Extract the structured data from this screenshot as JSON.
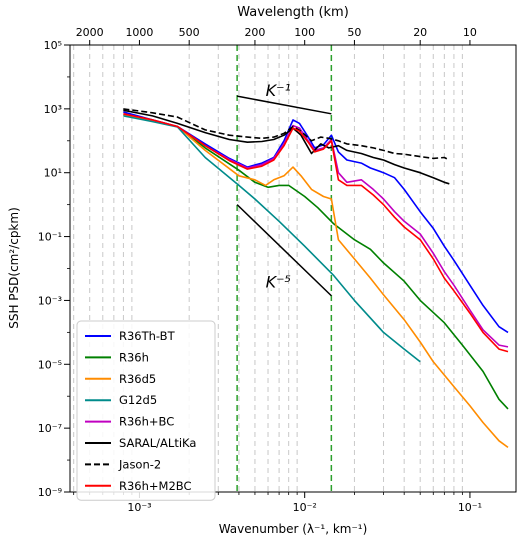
{
  "chart_data": {
    "type": "line",
    "xscale": "log",
    "yscale": "log",
    "xlim": [
      0.00038,
      0.19
    ],
    "ylim": [
      1e-09,
      100000
    ],
    "grid": "vertical dashed grey lines at minor x ticks",
    "xlabel": "Wavenumber (λ⁻¹, km⁻¹)",
    "ylabel": "SSH PSD(cm²/cpkm)",
    "top_axis_label": "Wavelength (km)",
    "x_tick_labels": [
      {
        "x": 0.001,
        "label": "10⁻³"
      },
      {
        "x": 0.01,
        "label": "10⁻²"
      },
      {
        "x": 0.1,
        "label": "10⁻¹"
      }
    ],
    "y_tick_labels": [
      {
        "y": 1e-09,
        "label": "10⁻⁹"
      },
      {
        "y": 1e-07,
        "label": "10⁻⁷"
      },
      {
        "y": 1e-05,
        "label": "10⁻⁵"
      },
      {
        "y": 0.001,
        "label": "10⁻³"
      },
      {
        "y": 0.1,
        "label": "10⁻¹"
      },
      {
        "y": 10,
        "label": "10¹"
      },
      {
        "y": 1000,
        "label": "10³"
      },
      {
        "y": 100000,
        "label": "10⁵"
      }
    ],
    "top_tick_labels": [
      {
        "km": 2000,
        "label": "2000"
      },
      {
        "km": 1000,
        "label": "1000"
      },
      {
        "km": 500,
        "label": "500"
      },
      {
        "km": 200,
        "label": "200"
      },
      {
        "km": 100,
        "label": "100"
      },
      {
        "km": 50,
        "label": "50"
      },
      {
        "km": 20,
        "label": "20"
      },
      {
        "km": 10,
        "label": "10"
      }
    ],
    "reference_lines": [
      {
        "label": "K⁻¹",
        "label_at": [
          0.0058,
          2500
        ],
        "points": [
          [
            0.0039,
            2500
          ],
          [
            0.0145,
            700
          ]
        ]
      },
      {
        "label": "K⁻⁵",
        "label_at": [
          0.0058,
          0.0025
        ],
        "points": [
          [
            0.0039,
            1
          ],
          [
            0.0145,
            0.0014
          ]
        ]
      }
    ],
    "vertical_markers": [
      {
        "x": 0.0039,
        "style": "dashed",
        "color": "#2ca02c"
      },
      {
        "x": 0.0145,
        "style": "dashed",
        "color": "#2ca02c"
      }
    ],
    "legend_position": "lower-left",
    "series": [
      {
        "name": "R36Th-BT",
        "color": "#0000ff",
        "style": "solid",
        "points": [
          [
            0.0008,
            800
          ],
          [
            0.0012,
            450
          ],
          [
            0.0017,
            280
          ],
          [
            0.0025,
            80
          ],
          [
            0.0035,
            28
          ],
          [
            0.0045,
            15
          ],
          [
            0.0055,
            20
          ],
          [
            0.0065,
            30
          ],
          [
            0.0075,
            100
          ],
          [
            0.0085,
            450
          ],
          [
            0.0093,
            350
          ],
          [
            0.0105,
            130
          ],
          [
            0.0115,
            60
          ],
          [
            0.013,
            75
          ],
          [
            0.0145,
            150
          ],
          [
            0.016,
            45
          ],
          [
            0.018,
            25
          ],
          [
            0.022,
            20
          ],
          [
            0.025,
            14
          ],
          [
            0.03,
            10
          ],
          [
            0.035,
            7
          ],
          [
            0.04,
            3
          ],
          [
            0.05,
            0.6
          ],
          [
            0.06,
            0.18
          ],
          [
            0.07,
            0.05
          ],
          [
            0.08,
            0.018
          ],
          [
            0.1,
            0.003
          ],
          [
            0.12,
            0.0007
          ],
          [
            0.15,
            0.00015
          ],
          [
            0.17,
            0.0001
          ]
        ]
      },
      {
        "name": "R36h",
        "color": "#008000",
        "style": "solid",
        "points": [
          [
            0.0008,
            650
          ],
          [
            0.0012,
            420
          ],
          [
            0.0017,
            280
          ],
          [
            0.0025,
            60
          ],
          [
            0.004,
            12
          ],
          [
            0.005,
            5
          ],
          [
            0.006,
            3.5
          ],
          [
            0.007,
            4
          ],
          [
            0.008,
            4
          ],
          [
            0.01,
            1.8
          ],
          [
            0.012,
            0.8
          ],
          [
            0.015,
            0.25
          ],
          [
            0.02,
            0.08
          ],
          [
            0.025,
            0.04
          ],
          [
            0.03,
            0.015
          ],
          [
            0.04,
            0.004
          ],
          [
            0.05,
            0.001
          ],
          [
            0.07,
            0.0002
          ],
          [
            0.09,
            4e-05
          ],
          [
            0.12,
            6e-06
          ],
          [
            0.15,
            8e-07
          ],
          [
            0.17,
            4e-07
          ]
        ]
      },
      {
        "name": "R36d5",
        "color": "#ff8c00",
        "style": "solid",
        "points": [
          [
            0.0008,
            650
          ],
          [
            0.0012,
            420
          ],
          [
            0.0017,
            280
          ],
          [
            0.0025,
            50
          ],
          [
            0.004,
            8
          ],
          [
            0.005,
            6
          ],
          [
            0.0058,
            4
          ],
          [
            0.0065,
            6
          ],
          [
            0.0075,
            8
          ],
          [
            0.0085,
            15
          ],
          [
            0.0095,
            8
          ],
          [
            0.011,
            3
          ],
          [
            0.013,
            1.8
          ],
          [
            0.0145,
            1.5
          ],
          [
            0.016,
            0.08
          ],
          [
            0.02,
            0.02
          ],
          [
            0.025,
            0.005
          ],
          [
            0.03,
            0.0015
          ],
          [
            0.04,
            0.00025
          ],
          [
            0.05,
            5e-05
          ],
          [
            0.06,
            1.2e-05
          ],
          [
            0.08,
            2e-06
          ],
          [
            0.1,
            5e-07
          ],
          [
            0.12,
            1.5e-07
          ],
          [
            0.15,
            4e-08
          ],
          [
            0.17,
            2.5e-08
          ]
        ]
      },
      {
        "name": "G12d5",
        "color": "#008b8b",
        "style": "solid",
        "points": [
          [
            0.0008,
            600
          ],
          [
            0.0012,
            400
          ],
          [
            0.0017,
            270
          ],
          [
            0.0025,
            30
          ],
          [
            0.004,
            4
          ],
          [
            0.005,
            1.5
          ],
          [
            0.007,
            0.3
          ],
          [
            0.01,
            0.05
          ],
          [
            0.015,
            0.006
          ],
          [
            0.02,
            0.001
          ],
          [
            0.03,
            0.0001
          ],
          [
            0.04,
            3e-05
          ],
          [
            0.05,
            1.2e-05
          ]
        ]
      },
      {
        "name": "R36h+BC",
        "color": "#c000c0",
        "style": "solid",
        "points": [
          [
            0.0008,
            700
          ],
          [
            0.0012,
            450
          ],
          [
            0.0017,
            280
          ],
          [
            0.0025,
            70
          ],
          [
            0.0035,
            26
          ],
          [
            0.0045,
            14
          ],
          [
            0.0055,
            18
          ],
          [
            0.0065,
            28
          ],
          [
            0.0075,
            80
          ],
          [
            0.0085,
            300
          ],
          [
            0.0093,
            250
          ],
          [
            0.0105,
            100
          ],
          [
            0.0115,
            50
          ],
          [
            0.013,
            60
          ],
          [
            0.0145,
            110
          ],
          [
            0.016,
            10
          ],
          [
            0.018,
            5
          ],
          [
            0.022,
            6
          ],
          [
            0.026,
            3
          ],
          [
            0.03,
            1.5
          ],
          [
            0.035,
            0.6
          ],
          [
            0.04,
            0.3
          ],
          [
            0.05,
            0.12
          ],
          [
            0.06,
            0.03
          ],
          [
            0.07,
            0.008
          ],
          [
            0.08,
            0.003
          ],
          [
            0.1,
            0.0005
          ],
          [
            0.12,
            0.00012
          ],
          [
            0.15,
            4e-05
          ],
          [
            0.17,
            3.5e-05
          ]
        ]
      },
      {
        "name": "SARAL/ALtiKa",
        "color": "#000000",
        "style": "solid",
        "points": [
          [
            0.0008,
            900
          ],
          [
            0.0012,
            600
          ],
          [
            0.0017,
            350
          ],
          [
            0.0025,
            180
          ],
          [
            0.0035,
            110
          ],
          [
            0.0045,
            90
          ],
          [
            0.0055,
            95
          ],
          [
            0.0065,
            110
          ],
          [
            0.0075,
            150
          ],
          [
            0.0085,
            250
          ],
          [
            0.0095,
            150
          ],
          [
            0.011,
            40
          ],
          [
            0.0125,
            80
          ],
          [
            0.014,
            60
          ],
          [
            0.016,
            70
          ],
          [
            0.018,
            50
          ],
          [
            0.022,
            40
          ],
          [
            0.026,
            30
          ],
          [
            0.03,
            25
          ],
          [
            0.035,
            18
          ],
          [
            0.04,
            14
          ],
          [
            0.05,
            10
          ],
          [
            0.06,
            7
          ],
          [
            0.07,
            5
          ],
          [
            0.075,
            4.5
          ]
        ]
      },
      {
        "name": "Jason-2",
        "color": "#000000",
        "style": "dashed",
        "points": [
          [
            0.0008,
            1000
          ],
          [
            0.0012,
            750
          ],
          [
            0.0017,
            550
          ],
          [
            0.0025,
            220
          ],
          [
            0.0035,
            150
          ],
          [
            0.0045,
            130
          ],
          [
            0.0055,
            120
          ],
          [
            0.0065,
            130
          ],
          [
            0.0075,
            170
          ],
          [
            0.0085,
            280
          ],
          [
            0.0095,
            200
          ],
          [
            0.011,
            100
          ],
          [
            0.0125,
            130
          ],
          [
            0.014,
            120
          ],
          [
            0.016,
            100
          ],
          [
            0.018,
            80
          ],
          [
            0.022,
            70
          ],
          [
            0.026,
            60
          ],
          [
            0.03,
            50
          ],
          [
            0.035,
            40
          ],
          [
            0.04,
            38
          ],
          [
            0.05,
            32
          ],
          [
            0.06,
            28
          ],
          [
            0.07,
            30
          ],
          [
            0.075,
            25
          ]
        ]
      },
      {
        "name": "R36h+M2BC",
        "color": "#ff0000",
        "style": "solid",
        "points": [
          [
            0.0008,
            700
          ],
          [
            0.0012,
            450
          ],
          [
            0.0017,
            280
          ],
          [
            0.0025,
            70
          ],
          [
            0.0035,
            24
          ],
          [
            0.0045,
            13
          ],
          [
            0.0055,
            16
          ],
          [
            0.0065,
            25
          ],
          [
            0.0075,
            70
          ],
          [
            0.0085,
            250
          ],
          [
            0.0093,
            200
          ],
          [
            0.0105,
            90
          ],
          [
            0.0115,
            45
          ],
          [
            0.013,
            55
          ],
          [
            0.0145,
            100
          ],
          [
            0.016,
            6
          ],
          [
            0.018,
            4
          ],
          [
            0.022,
            4
          ],
          [
            0.026,
            2
          ],
          [
            0.03,
            1
          ],
          [
            0.035,
            0.4
          ],
          [
            0.04,
            0.2
          ],
          [
            0.05,
            0.08
          ],
          [
            0.06,
            0.02
          ],
          [
            0.07,
            0.005
          ],
          [
            0.08,
            0.002
          ],
          [
            0.1,
            0.0004
          ],
          [
            0.12,
            0.0001
          ],
          [
            0.15,
            3e-05
          ],
          [
            0.17,
            2.5e-05
          ]
        ]
      }
    ]
  }
}
